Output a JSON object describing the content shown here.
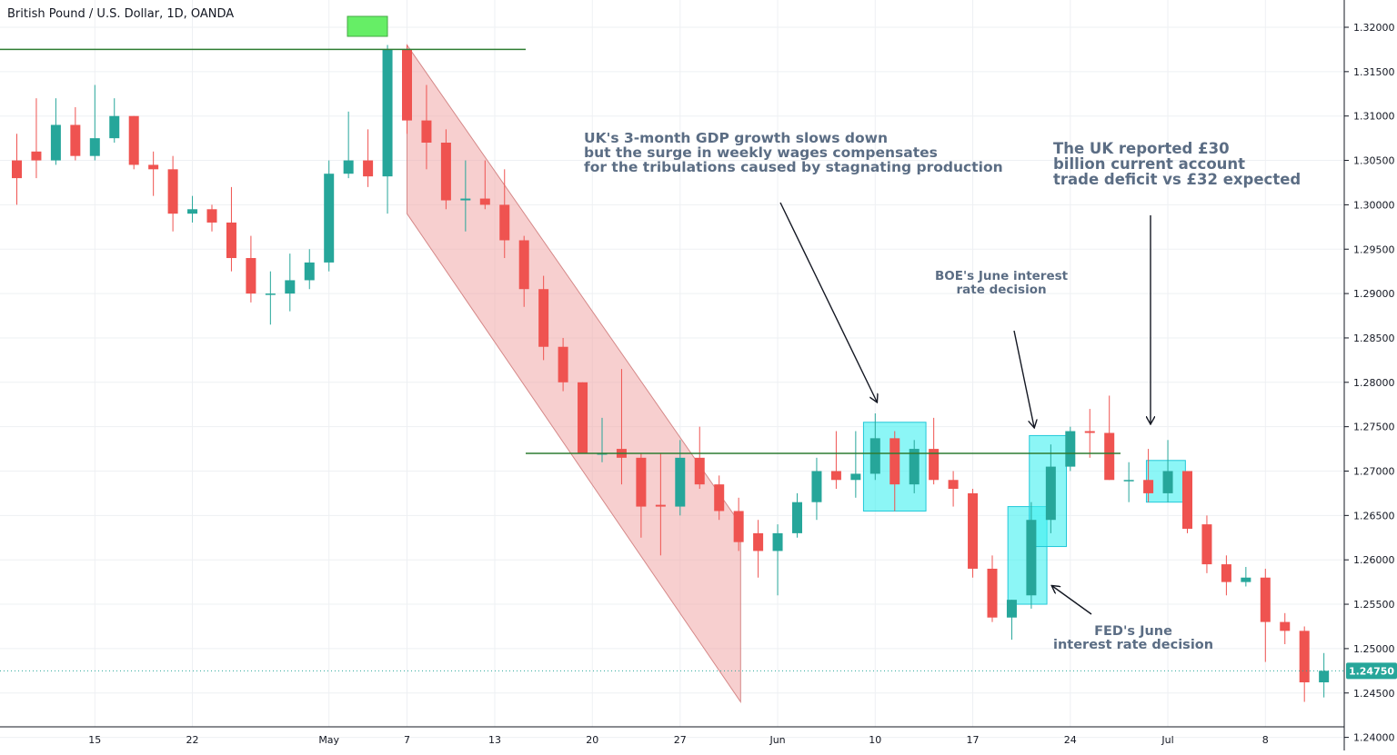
{
  "symbol": {
    "title": "British Pound / U.S. Dollar, 1D, OANDA"
  },
  "price_tag": "1.24750",
  "colors": {
    "up": "#26a69a",
    "down": "#ef5350",
    "grid": "#eef0f3",
    "axis_text": "#131722",
    "channel_fill": "#f0a8a8",
    "highlight_fill": "#40f0f0",
    "level_line": "#2e7d32",
    "marker": "#66ee66",
    "annotation_text": "#5b6d84",
    "tag_bg": "#26a69a"
  },
  "annotations": {
    "gdp": "UK's 3-month GDP growth slows down\nbut the surge in weekly wages compensates\nfor the tribulations caused by stagnating production",
    "deficit": "The UK reported £30\nbillion current account\ntrade deficit vs £32 expected",
    "boe": "BOE's June interest\nrate decision",
    "fed": "FED's June\ninterest rate decision"
  },
  "chart_data": {
    "type": "candlestick",
    "title": "British Pound / U.S. Dollar, 1D, OANDA",
    "ylim": [
      1.24,
      1.3225
    ],
    "y_ticks": [
      "1.24000",
      "1.24500",
      "1.25000",
      "1.25500",
      "1.26000",
      "1.26500",
      "1.27000",
      "1.27500",
      "1.28000",
      "1.28500",
      "1.29000",
      "1.29500",
      "1.30000",
      "1.30500",
      "1.31000",
      "1.31500",
      "1.32000"
    ],
    "x_tick_labels": [
      "15",
      "22",
      "May",
      "7",
      "13",
      "20",
      "27",
      "Jun",
      "10",
      "17",
      "24",
      "Jul",
      "8"
    ],
    "last_price": 1.2475,
    "candles": [
      [
        1.305,
        1.308,
        1.3,
        1.303
      ],
      [
        1.306,
        1.312,
        1.303,
        1.305
      ],
      [
        1.305,
        1.312,
        1.3045,
        1.309
      ],
      [
        1.309,
        1.311,
        1.305,
        1.3055
      ],
      [
        1.3055,
        1.3135,
        1.305,
        1.3075
      ],
      [
        1.3075,
        1.312,
        1.307,
        1.31
      ],
      [
        1.31,
        1.31,
        1.304,
        1.3045
      ],
      [
        1.3045,
        1.306,
        1.301,
        1.304
      ],
      [
        1.304,
        1.3055,
        1.297,
        1.299
      ],
      [
        1.299,
        1.301,
        1.298,
        1.2995
      ],
      [
        1.2995,
        1.3,
        1.297,
        1.298
      ],
      [
        1.298,
        1.302,
        1.2925,
        1.294
      ],
      [
        1.294,
        1.2965,
        1.289,
        1.29
      ],
      [
        1.29,
        1.2925,
        1.2865,
        1.29
      ],
      [
        1.29,
        1.2945,
        1.288,
        1.2915
      ],
      [
        1.2915,
        1.295,
        1.2905,
        1.2935
      ],
      [
        1.2935,
        1.305,
        1.2925,
        1.3035
      ],
      [
        1.3035,
        1.3105,
        1.303,
        1.305
      ],
      [
        1.305,
        1.3085,
        1.302,
        1.3032
      ],
      [
        1.3032,
        1.318,
        1.299,
        1.3175
      ],
      [
        1.3175,
        1.318,
        1.308,
        1.3095
      ],
      [
        1.3095,
        1.3135,
        1.304,
        1.307
      ],
      [
        1.307,
        1.3085,
        1.2995,
        1.3005
      ],
      [
        1.3005,
        1.305,
        1.297,
        1.3007
      ],
      [
        1.3007,
        1.305,
        1.2995,
        1.3
      ],
      [
        1.3,
        1.304,
        1.294,
        1.296
      ],
      [
        1.296,
        1.2965,
        1.2885,
        1.2905
      ],
      [
        1.2905,
        1.292,
        1.2825,
        1.284
      ],
      [
        1.284,
        1.285,
        1.279,
        1.28
      ],
      [
        1.28,
        1.28,
        1.272,
        1.272
      ],
      [
        1.272,
        1.276,
        1.271,
        1.272
      ],
      [
        1.2725,
        1.2815,
        1.2685,
        1.2715
      ],
      [
        1.2715,
        1.272,
        1.2625,
        1.266
      ],
      [
        1.2662,
        1.272,
        1.2605,
        1.266
      ],
      [
        1.266,
        1.2735,
        1.265,
        1.2715
      ],
      [
        1.2715,
        1.275,
        1.268,
        1.2685
      ],
      [
        1.2685,
        1.2695,
        1.2645,
        1.2655
      ],
      [
        1.2655,
        1.267,
        1.261,
        1.262
      ],
      [
        1.263,
        1.2645,
        1.258,
        1.261
      ],
      [
        1.261,
        1.264,
        1.256,
        1.263
      ],
      [
        1.263,
        1.2675,
        1.2625,
        1.2665
      ],
      [
        1.2665,
        1.2715,
        1.2645,
        1.27
      ],
      [
        1.27,
        1.2745,
        1.268,
        1.269
      ],
      [
        1.269,
        1.2745,
        1.267,
        1.2697
      ],
      [
        1.2697,
        1.2765,
        1.269,
        1.2737
      ],
      [
        1.2737,
        1.2745,
        1.2655,
        1.2685
      ],
      [
        1.2685,
        1.2735,
        1.2675,
        1.2725
      ],
      [
        1.2725,
        1.276,
        1.2685,
        1.269
      ],
      [
        1.269,
        1.27,
        1.266,
        1.268
      ],
      [
        1.2675,
        1.268,
        1.258,
        1.259
      ],
      [
        1.259,
        1.2605,
        1.253,
        1.2535
      ],
      [
        1.2535,
        1.2555,
        1.251,
        1.2555
      ],
      [
        1.256,
        1.2665,
        1.2545,
        1.2645
      ],
      [
        1.2645,
        1.273,
        1.263,
        1.2705
      ],
      [
        1.2705,
        1.275,
        1.27,
        1.2745
      ],
      [
        1.2745,
        1.277,
        1.2715,
        1.2743
      ],
      [
        1.2743,
        1.2785,
        1.269,
        1.269
      ],
      [
        1.269,
        1.271,
        1.2665,
        1.269
      ],
      [
        1.269,
        1.2725,
        1.2665,
        1.2675
      ],
      [
        1.2675,
        1.2735,
        1.2665,
        1.27
      ],
      [
        1.27,
        1.27,
        1.263,
        1.2635
      ],
      [
        1.264,
        1.265,
        1.2585,
        1.2595
      ],
      [
        1.2595,
        1.2605,
        1.256,
        1.2575
      ],
      [
        1.2575,
        1.2592,
        1.257,
        1.258
      ],
      [
        1.258,
        1.259,
        1.2485,
        1.253
      ],
      [
        1.253,
        1.254,
        1.2505,
        1.252
      ],
      [
        1.252,
        1.2525,
        1.244,
        1.2462
      ],
      [
        1.2462,
        1.2495,
        1.2445,
        1.2475
      ]
    ]
  }
}
